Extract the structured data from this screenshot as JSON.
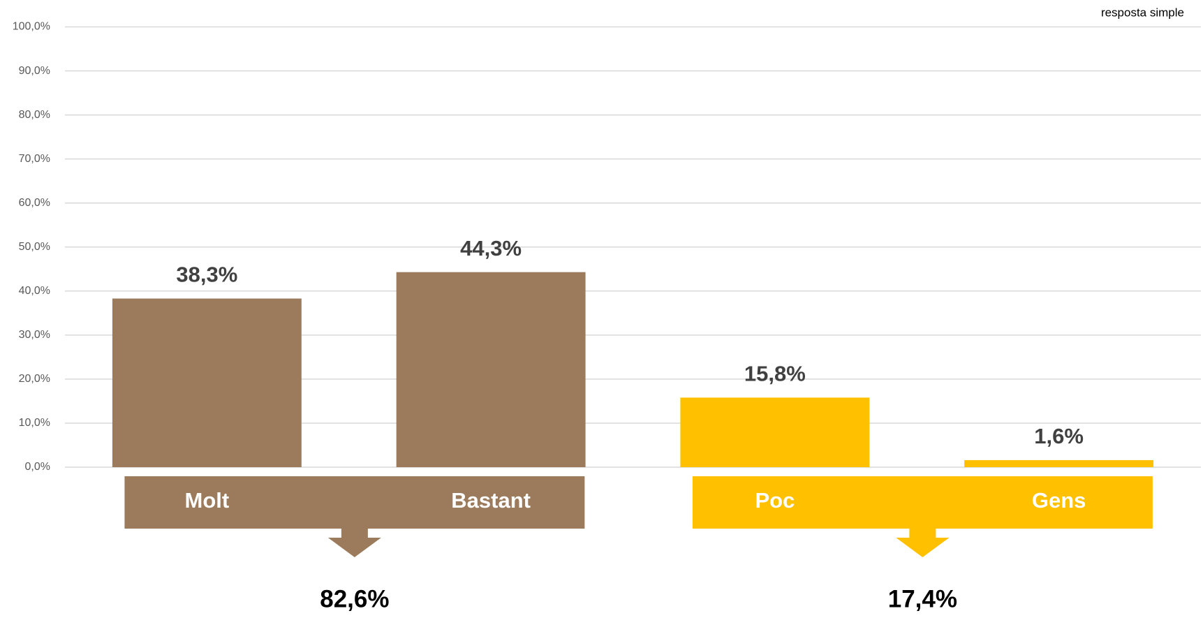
{
  "chart_data": {
    "type": "bar",
    "annotation": "resposta simple",
    "categories": [
      "Molt",
      "Bastant",
      "Poc",
      "Gens"
    ],
    "values": [
      38.3,
      44.3,
      15.8,
      1.6
    ],
    "value_labels": [
      "38,3%",
      "44,3%",
      "15,8%",
      "1,6%"
    ],
    "colors": [
      "#9b7b5b",
      "#9b7b5b",
      "#ffc000",
      "#ffc000"
    ],
    "ylim": [
      0,
      100
    ],
    "yticks": [
      {
        "value": 0,
        "label": "0,0%"
      },
      {
        "value": 10,
        "label": "10,0%"
      },
      {
        "value": 20,
        "label": "20,0%"
      },
      {
        "value": 30,
        "label": "30,0%"
      },
      {
        "value": 40,
        "label": "40,0%"
      },
      {
        "value": 50,
        "label": "50,0%"
      },
      {
        "value": 60,
        "label": "60,0%"
      },
      {
        "value": 70,
        "label": "70,0%"
      },
      {
        "value": 80,
        "label": "80,0%"
      },
      {
        "value": 90,
        "label": "90,0%"
      },
      {
        "value": 100,
        "label": "100,0%"
      }
    ],
    "grid": true,
    "groups": [
      {
        "members": [
          "Molt",
          "Bastant"
        ],
        "total": 82.6,
        "total_label": "82,6%",
        "color": "#9b7b5b"
      },
      {
        "members": [
          "Poc",
          "Gens"
        ],
        "total": 17.4,
        "total_label": "17,4%",
        "color": "#ffc000"
      }
    ]
  }
}
